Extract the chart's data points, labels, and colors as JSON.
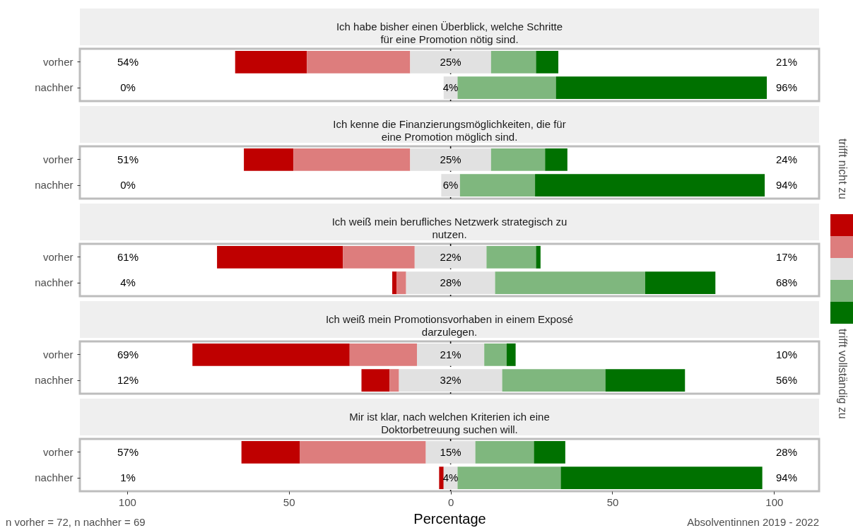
{
  "chart_data": [
    {
      "type": "bar",
      "orientation": "horizontal",
      "title": "Ich habe bisher einen Überblick, welche Schritte\nfür eine Promotion nötig sind.",
      "categories": [
        "vorher",
        "nachher"
      ],
      "series": [
        {
          "color": "#bf0000",
          "values": [
            22.2,
            null
          ],
          "base": [
            -66.6,
            null
          ]
        },
        {
          "color": "#dd7d7d",
          "values": [
            31.9,
            null
          ],
          "base": [
            -44.4,
            null
          ]
        },
        {
          "color": "#e1e1e1",
          "values": [
            25.0,
            4.3
          ],
          "base": [
            -12.5,
            -2.15
          ],
          "value_labels": [
            "25%",
            "4%"
          ]
        },
        {
          "color": "#7fb77e",
          "values": [
            13.9,
            30.4
          ],
          "base": [
            12.5,
            2.15
          ]
        },
        {
          "color": "#007100",
          "values": [
            6.9,
            65.2
          ],
          "base": [
            26.4,
            32.55
          ]
        }
      ],
      "xlim": [
        -114.6,
        113.9
      ],
      "tick_labels": "y",
      "ref_lines": [
        {
          "axis": "x",
          "value": 0,
          "color": "#000000",
          "line_style": "dashed"
        }
      ],
      "annotations": [
        "54%",
        "0%",
        "21%",
        "96%",
        "trifft nicht zu",
        "trifft vollständig zu"
      ]
    },
    {
      "type": "bar",
      "orientation": "horizontal",
      "title": "Ich kenne die Finanzierungsmöglichkeiten, die für\neine Promotion möglich sind.",
      "categories": [
        "vorher",
        "nachher"
      ],
      "series": [
        {
          "color": "#bf0000",
          "values": [
            15.3,
            null
          ],
          "base": [
            -63.9,
            null
          ]
        },
        {
          "color": "#dd7d7d",
          "values": [
            36.1,
            null
          ],
          "base": [
            -48.6,
            null
          ]
        },
        {
          "color": "#e1e1e1",
          "values": [
            25.0,
            5.8
          ],
          "base": [
            -12.5,
            -2.9
          ],
          "value_labels": [
            "25%",
            "6%"
          ]
        },
        {
          "color": "#7fb77e",
          "values": [
            16.7,
            23.2
          ],
          "base": [
            12.5,
            2.9
          ]
        },
        {
          "color": "#007100",
          "values": [
            6.9,
            71.0
          ],
          "base": [
            29.2,
            26.1
          ]
        }
      ],
      "xlim": [
        -114.6,
        113.9
      ],
      "tick_labels": "y",
      "ref_lines": [
        {
          "axis": "x",
          "value": 0,
          "color": "#000000",
          "line_style": "dashed"
        }
      ],
      "annotations": [
        "51%",
        "0%",
        "24%",
        "94%"
      ]
    },
    {
      "type": "bar",
      "orientation": "horizontal",
      "title": "Ich weiß mein berufliches Netzwerk strategisch zu\nnutzen.",
      "categories": [
        "vorher",
        "nachher"
      ],
      "series": [
        {
          "color": "#bf0000",
          "values": [
            38.9,
            1.4
          ],
          "base": [
            -72.2,
            -18.05
          ]
        },
        {
          "color": "#dd7d7d",
          "values": [
            22.2,
            2.9
          ],
          "base": [
            -33.3,
            -16.65
          ]
        },
        {
          "color": "#e1e1e1",
          "values": [
            22.2,
            27.5
          ],
          "base": [
            -11.1,
            -13.75
          ],
          "value_labels": [
            "22%",
            "28%"
          ]
        },
        {
          "color": "#7fb77e",
          "values": [
            15.3,
            46.4
          ],
          "base": [
            11.1,
            13.75
          ]
        },
        {
          "color": "#007100",
          "values": [
            1.4,
            21.7
          ],
          "base": [
            26.4,
            60.15
          ]
        }
      ],
      "xlim": [
        -114.6,
        113.9
      ],
      "tick_labels": "y",
      "ref_lines": [
        {
          "axis": "x",
          "value": 0,
          "color": "#000000",
          "line_style": "dashed"
        }
      ],
      "annotations": [
        "61%",
        "4%",
        "17%",
        "68%"
      ]
    },
    {
      "type": "bar",
      "orientation": "horizontal",
      "title": "Ich weiß mein Promotionsvorhaben in einem Exposé\ndarzulegen.",
      "categories": [
        "vorher",
        "nachher"
      ],
      "series": [
        {
          "color": "#bf0000",
          "values": [
            48.6,
            8.7
          ],
          "base": [
            -79.8,
            -27.55
          ]
        },
        {
          "color": "#dd7d7d",
          "values": [
            20.8,
            2.9
          ],
          "base": [
            -31.2,
            -18.85
          ]
        },
        {
          "color": "#e1e1e1",
          "values": [
            20.8,
            31.9
          ],
          "base": [
            -10.4,
            -15.95
          ],
          "value_labels": [
            "21%",
            "32%"
          ]
        },
        {
          "color": "#7fb77e",
          "values": [
            6.9,
            31.9
          ],
          "base": [
            10.4,
            15.95
          ]
        },
        {
          "color": "#007100",
          "values": [
            2.8,
            24.6
          ],
          "base": [
            17.3,
            47.85
          ]
        }
      ],
      "xlim": [
        -114.6,
        113.9
      ],
      "tick_labels": "y",
      "ref_lines": [
        {
          "axis": "x",
          "value": 0,
          "color": "#000000",
          "line_style": "dashed"
        }
      ],
      "annotations": [
        "69%",
        "12%",
        "10%",
        "56%"
      ]
    },
    {
      "type": "bar",
      "orientation": "horizontal",
      "title": "Mir ist klar, nach welchen Kriterien ich eine\nDoktorbetreuung suchen will.",
      "categories": [
        "vorher",
        "nachher"
      ],
      "xlabel": "Percentage",
      "series": [
        {
          "color": "#bf0000",
          "values": [
            18.1,
            1.4
          ],
          "base": [
            -64.65,
            -3.55
          ]
        },
        {
          "color": "#dd7d7d",
          "values": [
            38.9,
            null
          ],
          "base": [
            -46.55,
            null
          ]
        },
        {
          "color": "#e1e1e1",
          "values": [
            15.3,
            4.3
          ],
          "base": [
            -7.65,
            -2.15
          ],
          "value_labels": [
            "15%",
            "4%"
          ]
        },
        {
          "color": "#7fb77e",
          "values": [
            18.1,
            31.9
          ],
          "base": [
            7.65,
            2.15
          ]
        },
        {
          "color": "#007100",
          "values": [
            9.7,
            62.3
          ],
          "base": [
            25.75,
            34.05
          ]
        }
      ],
      "xlim": [
        -114.6,
        113.9
      ],
      "xticks": [
        {
          "value": -100,
          "label": "100"
        },
        {
          "value": -50,
          "label": "50"
        },
        0,
        50,
        100
      ],
      "ref_lines": [
        {
          "axis": "x",
          "value": 0,
          "color": "#000000",
          "line_style": "dashed"
        }
      ],
      "annotations": [
        "57%",
        "1%",
        "28%",
        "94%",
        "n vorher = 72, n nachher = 69",
        "Absolventinnen 2019 - 2022"
      ]
    }
  ]
}
